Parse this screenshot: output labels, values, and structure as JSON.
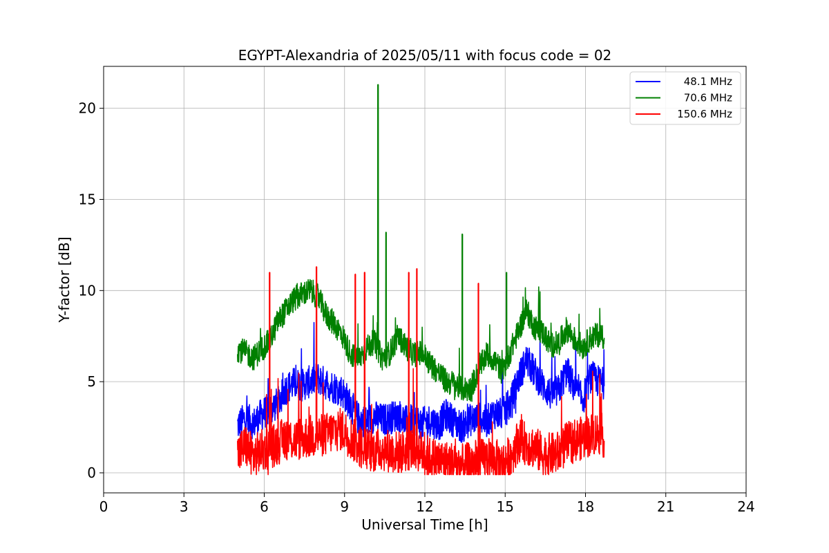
{
  "chart_data": {
    "type": "line",
    "title": "EGYPT-Alexandria of 2025/05/11 with focus code = 02",
    "xlabel": "Universal Time [h]",
    "ylabel": "Y-factor [dB]",
    "xlim": [
      0,
      24
    ],
    "ylim": [
      -1.1,
      22.3
    ],
    "xticks": [
      0,
      3,
      6,
      9,
      12,
      15,
      18,
      21,
      24
    ],
    "yticks": [
      0,
      5,
      10,
      15,
      20
    ],
    "grid": true,
    "legend_position": "top-right",
    "series": [
      {
        "name": "48.1 MHz",
        "color": "#0000ff",
        "x": [
          5.0,
          5.3,
          5.6,
          5.9,
          6.2,
          6.5,
          6.8,
          7.1,
          7.4,
          7.7,
          8.0,
          8.3,
          8.6,
          8.9,
          9.2,
          9.5,
          9.8,
          10.1,
          10.4,
          10.7,
          11.0,
          11.3,
          11.6,
          11.9,
          12.2,
          12.5,
          12.8,
          13.1,
          13.4,
          13.7,
          14.0,
          14.3,
          14.6,
          14.9,
          15.2,
          15.5,
          15.8,
          16.1,
          16.4,
          16.7,
          17.0,
          17.3,
          17.6,
          17.9,
          18.2,
          18.5,
          18.7
        ],
        "y": [
          2.6,
          3.0,
          2.7,
          3.2,
          3.5,
          3.8,
          4.6,
          4.9,
          4.8,
          5.0,
          5.2,
          4.9,
          4.7,
          4.5,
          3.8,
          3.0,
          2.8,
          3.1,
          2.9,
          3.0,
          3.2,
          2.8,
          2.9,
          2.7,
          2.9,
          2.6,
          3.2,
          2.8,
          2.5,
          2.9,
          3.0,
          2.8,
          3.3,
          3.2,
          3.8,
          5.2,
          6.2,
          5.5,
          4.8,
          4.3,
          4.5,
          5.6,
          4.6,
          4.0,
          5.3,
          5.0,
          4.9
        ]
      },
      {
        "name": "70.6 MHz",
        "color": "#008000",
        "x": [
          5.0,
          5.3,
          5.6,
          5.9,
          6.2,
          6.5,
          6.8,
          7.1,
          7.4,
          7.7,
          8.0,
          8.3,
          8.6,
          8.9,
          9.2,
          9.5,
          9.8,
          10.1,
          10.4,
          10.7,
          11.0,
          11.3,
          11.6,
          11.9,
          12.2,
          12.5,
          12.8,
          13.1,
          13.4,
          13.7,
          14.0,
          14.3,
          14.6,
          14.9,
          15.2,
          15.5,
          15.8,
          16.1,
          16.4,
          16.7,
          17.0,
          17.3,
          17.6,
          17.9,
          18.2,
          18.5,
          18.7
        ],
        "y": [
          6.8,
          6.6,
          6.3,
          6.8,
          7.2,
          8.3,
          8.9,
          9.5,
          9.8,
          10.0,
          9.7,
          8.7,
          8.2,
          7.6,
          6.6,
          6.2,
          6.8,
          7.2,
          6.3,
          6.6,
          7.5,
          6.9,
          6.5,
          6.6,
          6.0,
          5.5,
          5.0,
          4.9,
          4.6,
          4.6,
          5.6,
          6.5,
          6.2,
          5.5,
          6.7,
          7.8,
          8.9,
          8.0,
          7.7,
          7.0,
          7.1,
          7.9,
          7.3,
          6.9,
          7.4,
          7.6,
          7.5
        ]
      },
      {
        "name": "150.6 MHz",
        "color": "#ff0000",
        "x": [
          5.0,
          5.3,
          5.6,
          5.9,
          6.2,
          6.5,
          6.8,
          7.1,
          7.4,
          7.7,
          8.0,
          8.3,
          8.6,
          8.9,
          9.2,
          9.5,
          9.8,
          10.1,
          10.4,
          10.7,
          11.0,
          11.3,
          11.6,
          11.9,
          12.2,
          12.5,
          12.8,
          13.1,
          13.4,
          13.7,
          14.0,
          14.3,
          14.6,
          14.9,
          15.2,
          15.5,
          15.8,
          16.1,
          16.4,
          16.7,
          17.0,
          17.3,
          17.6,
          17.9,
          18.2,
          18.5,
          18.7
        ],
        "y": [
          1.0,
          1.5,
          0.9,
          1.2,
          1.4,
          1.6,
          1.9,
          1.8,
          1.9,
          2.0,
          2.0,
          2.1,
          2.3,
          2.4,
          2.0,
          1.5,
          1.3,
          1.2,
          1.3,
          1.2,
          1.1,
          1.2,
          1.4,
          1.1,
          0.8,
          0.7,
          0.6,
          0.5,
          0.4,
          0.5,
          0.6,
          0.8,
          0.7,
          0.5,
          0.9,
          1.8,
          1.6,
          1.4,
          1.0,
          1.0,
          1.1,
          1.6,
          1.8,
          1.9,
          2.1,
          2.2,
          2.0
        ]
      }
    ],
    "spikes": [
      {
        "series": "70.6 MHz",
        "x": 10.25,
        "y": 21.3
      },
      {
        "series": "70.6 MHz",
        "x": 10.55,
        "y": 13.2
      },
      {
        "series": "70.6 MHz",
        "x": 13.4,
        "y": 13.1
      },
      {
        "series": "70.6 MHz",
        "x": 15.05,
        "y": 11.0
      },
      {
        "series": "150.6 MHz",
        "x": 6.2,
        "y": 11.0
      },
      {
        "series": "150.6 MHz",
        "x": 7.95,
        "y": 11.3
      },
      {
        "series": "150.6 MHz",
        "x": 9.4,
        "y": 10.9
      },
      {
        "series": "150.6 MHz",
        "x": 9.75,
        "y": 11.0
      },
      {
        "series": "150.6 MHz",
        "x": 11.4,
        "y": 11.0
      },
      {
        "series": "150.6 MHz",
        "x": 11.7,
        "y": 11.2
      },
      {
        "series": "150.6 MHz",
        "x": 14.0,
        "y": 10.4
      }
    ]
  }
}
